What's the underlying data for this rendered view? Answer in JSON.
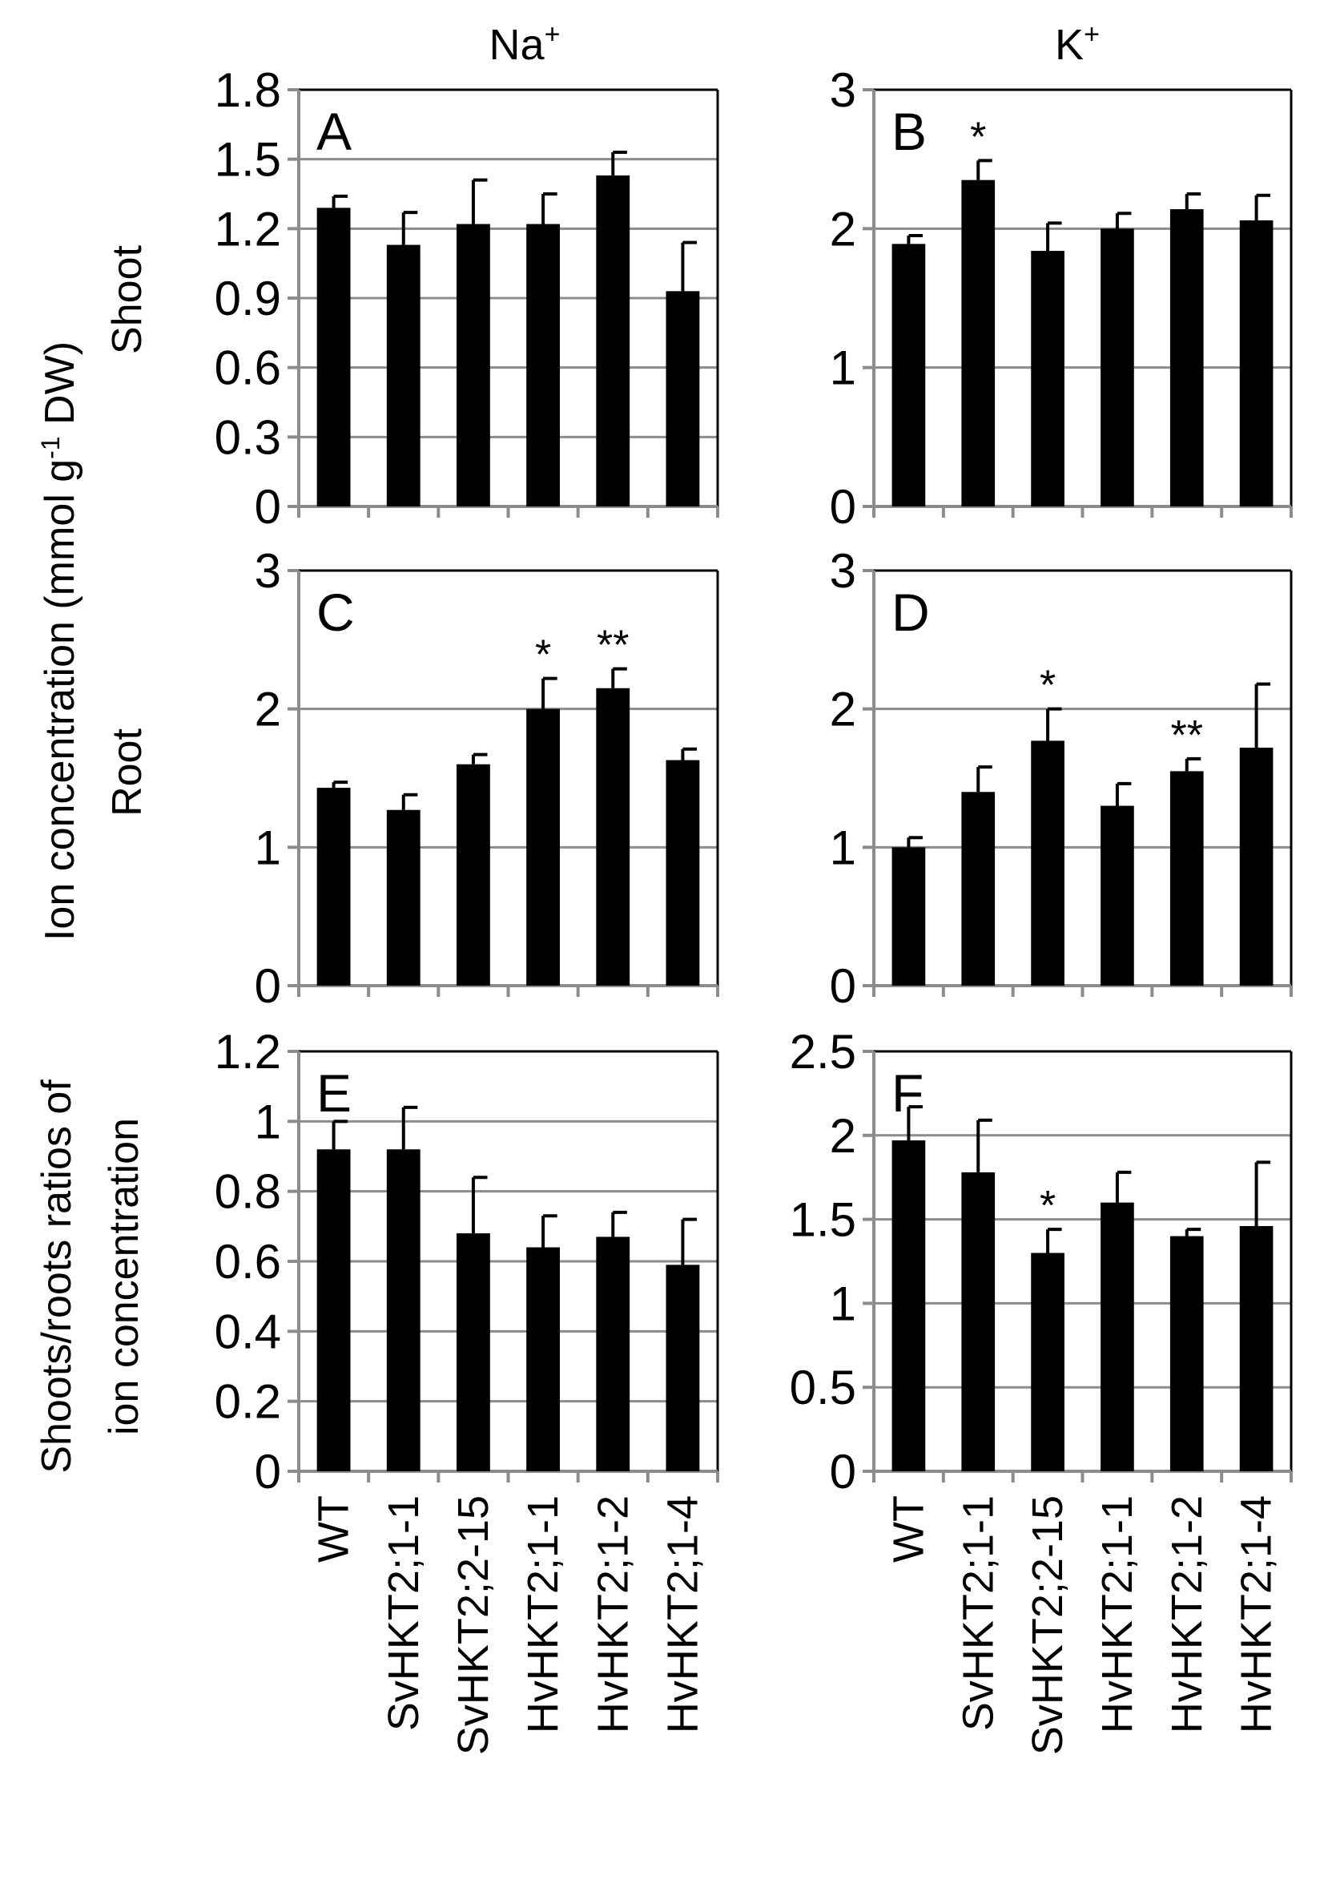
{
  "figure": {
    "column_titles": {
      "na": {
        "base": "Na",
        "sup": "+"
      },
      "k": {
        "base": "K",
        "sup": "+"
      }
    },
    "y_axis_title": {
      "prefix": "Ion concentration (mmol g",
      "sup": "-1",
      "suffix": " DW)"
    },
    "row_labels": {
      "shoot": "Shoot",
      "root": "Root",
      "ratio_line1": "Shoots/roots ratios of",
      "ratio_line2": "ion concentration"
    }
  },
  "colors": {
    "bar": "#000000",
    "grid": "#8c8c8c",
    "axis": "#8c8c8c",
    "frame": "#000000"
  },
  "chart_data": [
    {
      "id": "A",
      "type": "bar",
      "letter": "A",
      "ion": "Na+",
      "tissue": "Shoot",
      "categories": [
        "WT",
        "SvHKT2;1-1",
        "SvHKT2;2-15",
        "HvHKT2;1-1",
        "HvHKT2;1-2",
        "HvHKT2;1-4"
      ],
      "values": [
        1.29,
        1.13,
        1.22,
        1.22,
        1.43,
        0.93
      ],
      "errors": [
        0.05,
        0.14,
        0.19,
        0.13,
        0.1,
        0.21
      ],
      "significance": [
        "",
        "",
        "",
        "",
        "",
        ""
      ],
      "ylim": [
        0,
        1.8
      ],
      "yticks": [
        0,
        0.3,
        0.6,
        0.9,
        1.2,
        1.5,
        1.8
      ],
      "ytick_labels": [
        "0",
        "0.3",
        "0.6",
        "0.9",
        "1.2",
        "1.5",
        "1.8"
      ]
    },
    {
      "id": "B",
      "type": "bar",
      "letter": "B",
      "ion": "K+",
      "tissue": "Shoot",
      "categories": [
        "WT",
        "SvHKT2;1-1",
        "SvHKT2;2-15",
        "HvHKT2;1-1",
        "HvHKT2;1-2",
        "HvHKT2;1-4"
      ],
      "values": [
        1.89,
        2.35,
        1.84,
        2.0,
        2.14,
        2.06
      ],
      "errors": [
        0.06,
        0.14,
        0.2,
        0.11,
        0.11,
        0.18
      ],
      "significance": [
        "",
        "*",
        "",
        "",
        "",
        ""
      ],
      "ylim": [
        0,
        3
      ],
      "yticks": [
        0,
        1,
        2,
        3
      ],
      "ytick_labels": [
        "0",
        "1",
        "2",
        "3"
      ]
    },
    {
      "id": "C",
      "type": "bar",
      "letter": "C",
      "ion": "Na+",
      "tissue": "Root",
      "categories": [
        "WT",
        "SvHKT2;1-1",
        "SvHKT2;2-15",
        "HvHKT2;1-1",
        "HvHKT2;1-2",
        "HvHKT2;1-4"
      ],
      "values": [
        1.43,
        1.27,
        1.6,
        2.0,
        2.15,
        1.63
      ],
      "errors": [
        0.04,
        0.11,
        0.07,
        0.22,
        0.14,
        0.08
      ],
      "significance": [
        "",
        "",
        "",
        "*",
        "**",
        ""
      ],
      "ylim": [
        0,
        3
      ],
      "yticks": [
        0,
        1,
        2,
        3
      ],
      "ytick_labels": [
        "0",
        "1",
        "2",
        "3"
      ]
    },
    {
      "id": "D",
      "type": "bar",
      "letter": "D",
      "ion": "K+",
      "tissue": "Root",
      "categories": [
        "WT",
        "SvHKT2;1-1",
        "SvHKT2;2-15",
        "HvHKT2;1-1",
        "HvHKT2;1-2",
        "HvHKT2;1-4"
      ],
      "values": [
        1.0,
        1.4,
        1.77,
        1.3,
        1.55,
        1.72
      ],
      "errors": [
        0.07,
        0.18,
        0.23,
        0.16,
        0.09,
        0.46
      ],
      "significance": [
        "",
        "",
        "*",
        "",
        "**",
        ""
      ],
      "ylim": [
        0,
        3
      ],
      "yticks": [
        0,
        1,
        2,
        3
      ],
      "ytick_labels": [
        "0",
        "1",
        "2",
        "3"
      ]
    },
    {
      "id": "E",
      "type": "bar",
      "letter": "E",
      "ion": "Na+",
      "tissue": "Shoots/roots ratio",
      "categories": [
        "WT",
        "SvHKT2;1-1",
        "SvHKT2;2-15",
        "HvHKT2;1-1",
        "HvHKT2;1-2",
        "HvHKT2;1-4"
      ],
      "values": [
        0.92,
        0.92,
        0.68,
        0.64,
        0.67,
        0.59
      ],
      "errors": [
        0.08,
        0.12,
        0.16,
        0.09,
        0.07,
        0.13
      ],
      "significance": [
        "",
        "",
        "",
        "",
        "",
        ""
      ],
      "ylim": [
        0,
        1.2
      ],
      "yticks": [
        0,
        0.2,
        0.4,
        0.6,
        0.8,
        1.0,
        1.2
      ],
      "ytick_labels": [
        "0",
        "0.2",
        "0.4",
        "0.6",
        "0.8",
        "1",
        "1.2"
      ]
    },
    {
      "id": "F",
      "type": "bar",
      "letter": "F",
      "ion": "K+",
      "tissue": "Shoots/roots ratio",
      "categories": [
        "WT",
        "SvHKT2;1-1",
        "SvHKT2;2-15",
        "HvHKT2;1-1",
        "HvHKT2;1-2",
        "HvHKT2;1-4"
      ],
      "values": [
        1.97,
        1.78,
        1.3,
        1.6,
        1.4,
        1.46
      ],
      "errors": [
        0.2,
        0.31,
        0.14,
        0.18,
        0.04,
        0.38
      ],
      "significance": [
        "",
        "",
        "*",
        "",
        "",
        ""
      ],
      "ylim": [
        0,
        2.5
      ],
      "yticks": [
        0,
        0.5,
        1.0,
        1.5,
        2.0,
        2.5
      ],
      "ytick_labels": [
        "0",
        "0.5",
        "1",
        "1.5",
        "2",
        "2.5"
      ]
    }
  ]
}
